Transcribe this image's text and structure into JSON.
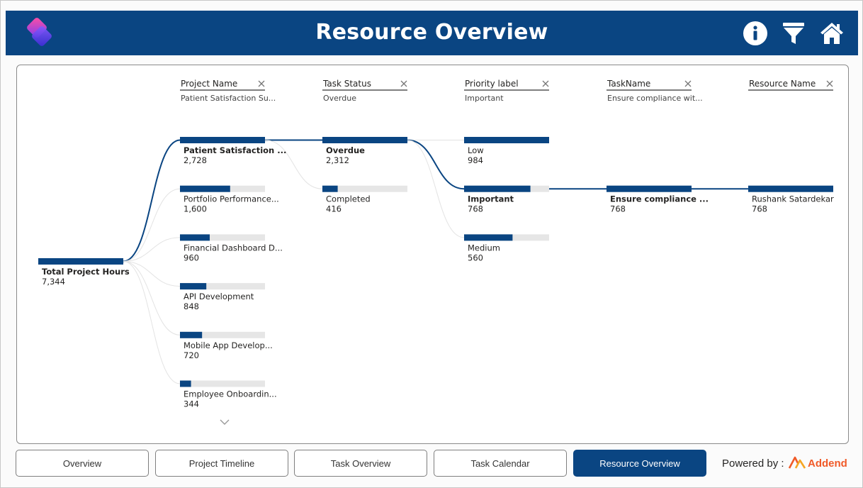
{
  "header": {
    "title": "Resource Overview",
    "icons": [
      "app-logo-icon",
      "info-icon",
      "filter-icon",
      "home-icon"
    ],
    "color": "#0a4582"
  },
  "tree": {
    "accent": "#0a4582",
    "track": "#e6e6e6",
    "root": {
      "label": "Total Project Hours",
      "value": "7,344",
      "fraction": 1.0
    },
    "levels": [
      {
        "field": "Project Name",
        "filter": "Patient Satisfaction Su...",
        "expanded": 0,
        "more": true,
        "nodes": [
          {
            "label": "Patient Satisfaction ...",
            "value": "2,728",
            "fraction": 1.0
          },
          {
            "label": "Portfolio Performance...",
            "value": "1,600",
            "fraction": 0.59
          },
          {
            "label": "Financial Dashboard D...",
            "value": "960",
            "fraction": 0.35
          },
          {
            "label": "API Development",
            "value": "848",
            "fraction": 0.31
          },
          {
            "label": "Mobile App Develop...",
            "value": "720",
            "fraction": 0.26
          },
          {
            "label": "Employee Onboardin...",
            "value": "344",
            "fraction": 0.13
          }
        ]
      },
      {
        "field": "Task Status",
        "filter": "Overdue",
        "expanded": 0,
        "more": false,
        "nodes": [
          {
            "label": "Overdue",
            "value": "2,312",
            "fraction": 1.0
          },
          {
            "label": "Completed",
            "value": "416",
            "fraction": 0.18
          }
        ]
      },
      {
        "field": "Priority label",
        "filter": "Important",
        "expanded": 1,
        "more": false,
        "nodes": [
          {
            "label": "Low",
            "value": "984",
            "fraction": 1.0
          },
          {
            "label": "Important",
            "value": "768",
            "fraction": 0.78
          },
          {
            "label": "Medium",
            "value": "560",
            "fraction": 0.57
          }
        ]
      },
      {
        "field": "TaskName",
        "filter": "Ensure compliance wit...",
        "expanded": 0,
        "more": false,
        "nodes": [
          {
            "label": "Ensure compliance ...",
            "value": "768",
            "fraction": 1.0
          }
        ]
      },
      {
        "field": "Resource Name",
        "filter": "",
        "expanded": -1,
        "more": false,
        "nodes": [
          {
            "label": "Rushank Satardekar",
            "value": "768",
            "fraction": 1.0
          }
        ]
      }
    ]
  },
  "nav": {
    "buttons": [
      {
        "label": "Overview",
        "active": false
      },
      {
        "label": "Project Timeline",
        "active": false
      },
      {
        "label": "Task Overview",
        "active": false
      },
      {
        "label": "Task Calendar",
        "active": false
      },
      {
        "label": "Resource Overview",
        "active": true
      }
    ]
  },
  "footer": {
    "powered_by": "Powered by :",
    "brand": "Addend",
    "brand_color": "#f05a28"
  }
}
